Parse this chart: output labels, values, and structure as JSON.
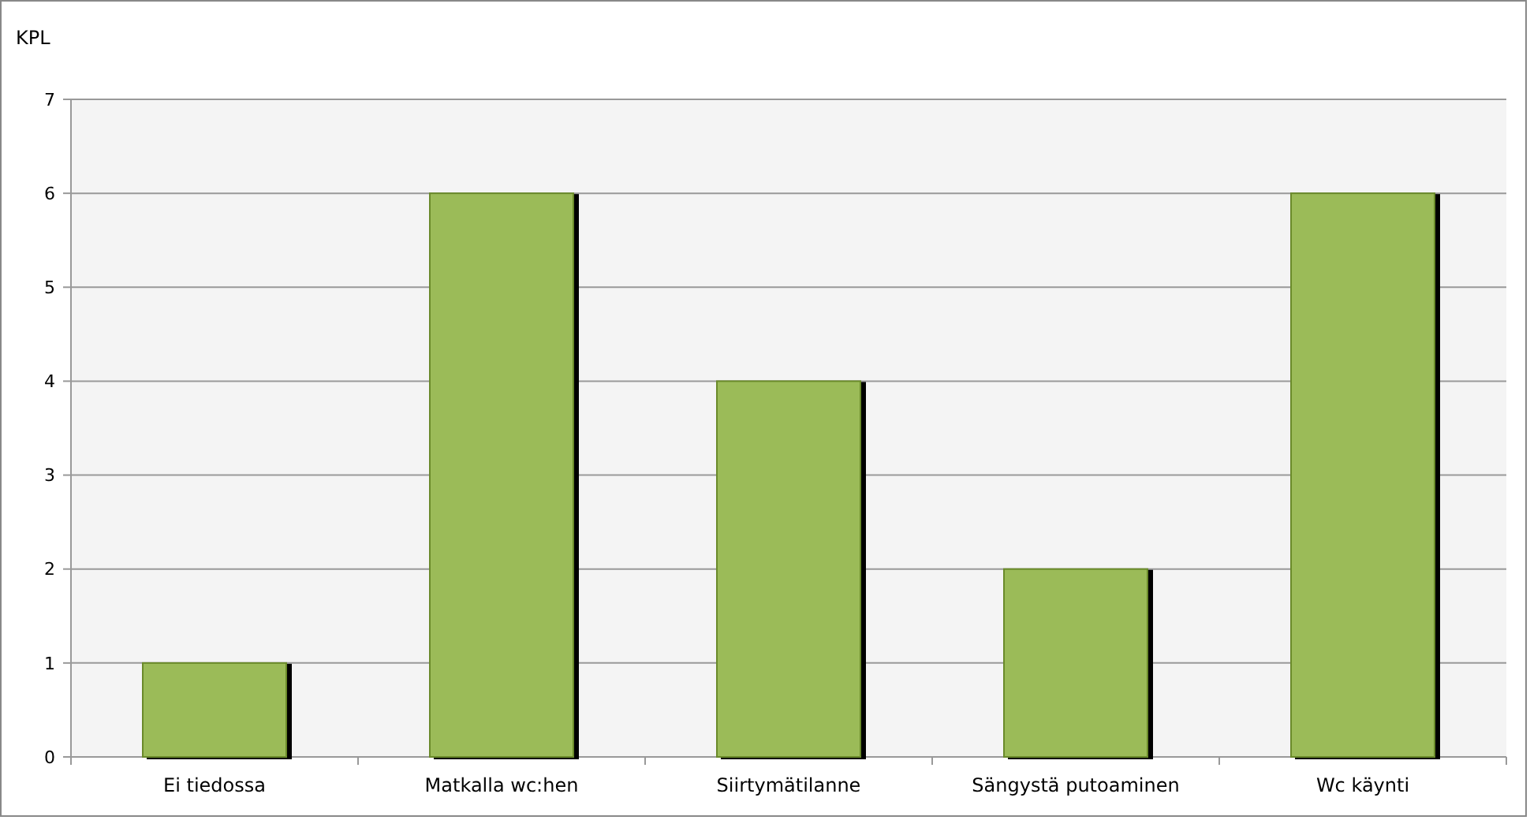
{
  "chart_data": {
    "type": "bar",
    "ylabel": "KPL",
    "categories": [
      "Ei tiedossa",
      "Matkalla wc:hen",
      "Siirtymätilanne",
      "Sängystä putoaminen",
      "Wc käynti"
    ],
    "values": [
      1,
      6,
      4,
      2,
      6
    ],
    "color": "#9bbb59",
    "ylim": [
      0,
      7
    ],
    "yticks": [
      0,
      1,
      2,
      3,
      4,
      5,
      6,
      7
    ],
    "grid": "y"
  }
}
